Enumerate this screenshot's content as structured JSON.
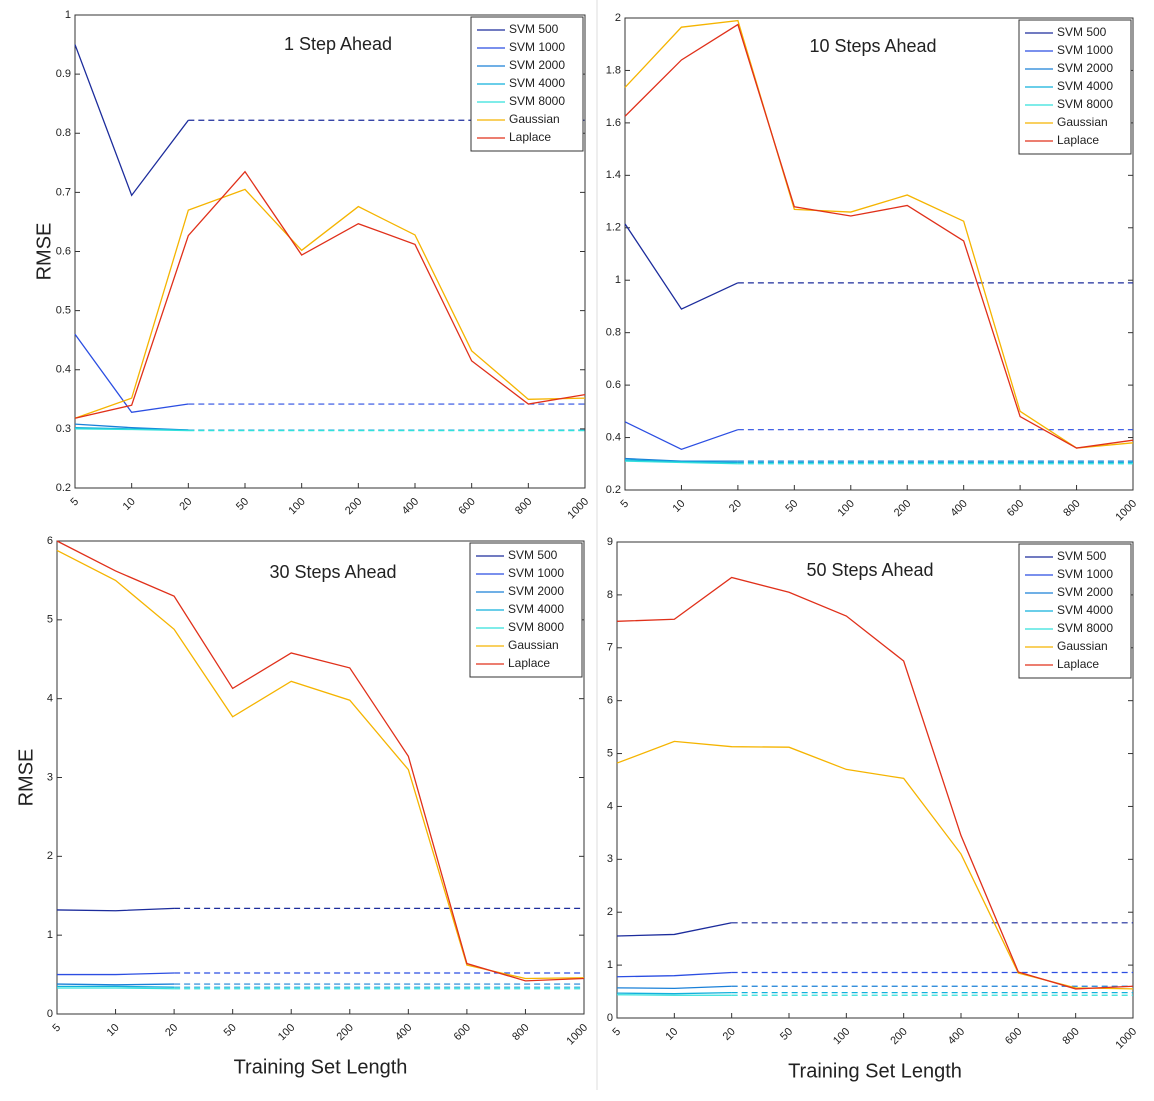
{
  "chart_data": [
    {
      "type": "line",
      "title": "1 Step Ahead",
      "y_label": "RMSE",
      "legend": "upper right",
      "extend_dashed": true,
      "categories": [
        "5",
        "10",
        "20",
        "50",
        "100",
        "200",
        "400",
        "600",
        "800",
        "1000"
      ],
      "ylim": [
        0.2,
        1
      ],
      "yticks": [
        0.2,
        0.3,
        0.4,
        0.5,
        0.6,
        0.7,
        0.8,
        0.9,
        1
      ],
      "series": [
        {
          "name": "SVM  500",
          "color": "#1c2c9c",
          "values": [
            0.95,
            0.695,
            0.822,
            null,
            null,
            null,
            null,
            null,
            null,
            null
          ]
        },
        {
          "name": "SVM  1000",
          "color": "#2b4ee2",
          "values": [
            0.46,
            0.328,
            0.342,
            null,
            null,
            null,
            null,
            null,
            null,
            null
          ]
        },
        {
          "name": "SVM  2000",
          "color": "#1a80d8",
          "values": [
            0.308,
            0.302,
            0.298,
            null,
            null,
            null,
            null,
            null,
            null,
            null
          ]
        },
        {
          "name": "SVM  4000",
          "color": "#12b0dc",
          "values": [
            0.302,
            0.3,
            0.298,
            null,
            null,
            null,
            null,
            null,
            null,
            null
          ]
        },
        {
          "name": "SVM  8000",
          "color": "#33e0dc",
          "values": [
            0.3,
            0.299,
            0.297,
            null,
            null,
            null,
            null,
            null,
            null,
            null
          ]
        },
        {
          "name": "Gaussian",
          "color": "#f5b400",
          "values": [
            0.318,
            0.352,
            0.67,
            0.705,
            0.602,
            0.676,
            0.628,
            0.432,
            0.35,
            0.352
          ]
        },
        {
          "name": "Laplace",
          "color": "#e0301a",
          "values": [
            0.318,
            0.34,
            0.627,
            0.735,
            0.594,
            0.647,
            0.612,
            0.415,
            0.342,
            0.358
          ]
        }
      ]
    },
    {
      "type": "line",
      "title": "10 Steps Ahead",
      "legend": "upper right",
      "extend_dashed": true,
      "categories": [
        "5",
        "10",
        "20",
        "50",
        "100",
        "200",
        "400",
        "600",
        "800",
        "1000"
      ],
      "ylim": [
        0.2,
        2
      ],
      "yticks": [
        0.2,
        0.4,
        0.6,
        0.8,
        1,
        1.2,
        1.4,
        1.6,
        1.8,
        2
      ],
      "series": [
        {
          "name": "SVM  500",
          "color": "#1c2c9c",
          "values": [
            1.215,
            0.89,
            0.99,
            null,
            null,
            null,
            null,
            null,
            null,
            null
          ]
        },
        {
          "name": "SVM  1000",
          "color": "#2b4ee2",
          "values": [
            0.46,
            0.355,
            0.43,
            null,
            null,
            null,
            null,
            null,
            null,
            null
          ]
        },
        {
          "name": "SVM  2000",
          "color": "#1a80d8",
          "values": [
            0.32,
            0.31,
            0.31,
            null,
            null,
            null,
            null,
            null,
            null,
            null
          ]
        },
        {
          "name": "SVM  4000",
          "color": "#12b0dc",
          "values": [
            0.315,
            0.308,
            0.305,
            null,
            null,
            null,
            null,
            null,
            null,
            null
          ]
        },
        {
          "name": "SVM  8000",
          "color": "#33e0dc",
          "values": [
            0.31,
            0.305,
            0.3,
            null,
            null,
            null,
            null,
            null,
            null,
            null
          ]
        },
        {
          "name": "Gaussian",
          "color": "#f5b400",
          "values": [
            1.735,
            1.965,
            1.99,
            1.27,
            1.26,
            1.325,
            1.225,
            0.5,
            0.36,
            0.38
          ]
        },
        {
          "name": "Laplace",
          "color": "#e0301a",
          "values": [
            1.625,
            1.84,
            1.975,
            1.28,
            1.245,
            1.285,
            1.15,
            0.48,
            0.36,
            0.39
          ]
        }
      ]
    },
    {
      "type": "line",
      "title": "30 Steps Ahead",
      "y_label": "RMSE",
      "x_label": "Training Set Length",
      "legend": "upper right",
      "extend_dashed": true,
      "categories": [
        "5",
        "10",
        "20",
        "50",
        "100",
        "200",
        "400",
        "600",
        "800",
        "1000"
      ],
      "ylim": [
        0,
        6
      ],
      "yticks": [
        0,
        1,
        2,
        3,
        4,
        5,
        6
      ],
      "series": [
        {
          "name": "SVM  500",
          "color": "#1c2c9c",
          "values": [
            1.32,
            1.31,
            1.34,
            null,
            null,
            null,
            null,
            null,
            null,
            null
          ]
        },
        {
          "name": "SVM  1000",
          "color": "#2b4ee2",
          "values": [
            0.5,
            0.5,
            0.52,
            null,
            null,
            null,
            null,
            null,
            null,
            null
          ]
        },
        {
          "name": "SVM  2000",
          "color": "#1a80d8",
          "values": [
            0.38,
            0.37,
            0.38,
            null,
            null,
            null,
            null,
            null,
            null,
            null
          ]
        },
        {
          "name": "SVM  4000",
          "color": "#12b0dc",
          "values": [
            0.35,
            0.35,
            0.34,
            null,
            null,
            null,
            null,
            null,
            null,
            null
          ]
        },
        {
          "name": "SVM  8000",
          "color": "#33e0dc",
          "values": [
            0.33,
            0.33,
            0.32,
            null,
            null,
            null,
            null,
            null,
            null,
            null
          ]
        },
        {
          "name": "Gaussian",
          "color": "#f5b400",
          "values": [
            5.88,
            5.5,
            4.88,
            3.77,
            4.22,
            3.98,
            3.1,
            0.62,
            0.45,
            0.46
          ]
        },
        {
          "name": "Laplace",
          "color": "#e0301a",
          "values": [
            6,
            5.62,
            5.3,
            4.13,
            4.58,
            4.39,
            3.27,
            0.64,
            0.42,
            0.45
          ]
        }
      ]
    },
    {
      "type": "line",
      "title": "50 Steps Ahead",
      "x_label": "Training Set Length",
      "legend": "upper right",
      "extend_dashed": true,
      "categories": [
        "5",
        "10",
        "20",
        "50",
        "100",
        "200",
        "400",
        "600",
        "800",
        "1000"
      ],
      "ylim": [
        0,
        9
      ],
      "yticks": [
        0,
        1,
        2,
        3,
        4,
        5,
        6,
        7,
        8,
        9
      ],
      "series": [
        {
          "name": "SVM  500",
          "color": "#1c2c9c",
          "values": [
            1.55,
            1.58,
            1.8,
            null,
            null,
            null,
            null,
            null,
            null,
            null
          ]
        },
        {
          "name": "SVM  1000",
          "color": "#2b4ee2",
          "values": [
            0.78,
            0.8,
            0.86,
            null,
            null,
            null,
            null,
            null,
            null,
            null
          ]
        },
        {
          "name": "SVM  2000",
          "color": "#1a80d8",
          "values": [
            0.57,
            0.56,
            0.6,
            null,
            null,
            null,
            null,
            null,
            null,
            null
          ]
        },
        {
          "name": "SVM  4000",
          "color": "#12b0dc",
          "values": [
            0.47,
            0.46,
            0.48,
            null,
            null,
            null,
            null,
            null,
            null,
            null
          ]
        },
        {
          "name": "SVM  8000",
          "color": "#33e0dc",
          "values": [
            0.44,
            0.43,
            0.43,
            null,
            null,
            null,
            null,
            null,
            null,
            null
          ]
        },
        {
          "name": "Gaussian",
          "color": "#f5b400",
          "values": [
            4.82,
            5.23,
            5.13,
            5.12,
            4.7,
            4.53,
            3.1,
            0.85,
            0.57,
            0.55
          ]
        },
        {
          "name": "Laplace",
          "color": "#e0301a",
          "values": [
            7.5,
            7.54,
            8.33,
            8.05,
            7.6,
            6.75,
            3.45,
            0.87,
            0.55,
            0.6
          ]
        }
      ]
    }
  ]
}
